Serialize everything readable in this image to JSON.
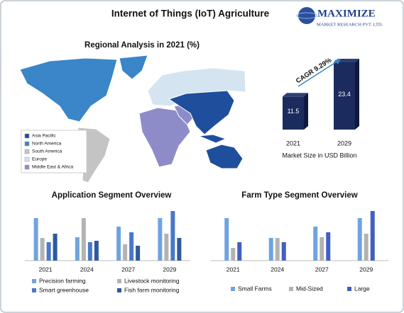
{
  "header": {
    "title": "Internet of Things (IoT) Agriculture",
    "logo_name": "MAXIMIZE",
    "logo_tagline": "MARKET RESEARCH PVT. LTD."
  },
  "regional": {
    "title": "Regional Analysis in 2021 (%)",
    "regions": [
      {
        "name": "Asia Pacific",
        "color": "#1f4e9c"
      },
      {
        "name": "North America",
        "color": "#3a86c8"
      },
      {
        "name": "South America",
        "color": "#c4c4c4"
      },
      {
        "name": "Europe",
        "color": "#d4e4f0"
      },
      {
        "name": "Middle East & Africa",
        "color": "#8e8cc8"
      }
    ]
  },
  "chart_data": [
    {
      "type": "bar",
      "categories": [
        "2021",
        "2029"
      ],
      "values": [
        11.5,
        23.4
      ],
      "color": "#1b2b5e",
      "annotation": "CAGR 9.29%",
      "x_label": "Market Size in USD Billion"
    },
    {
      "type": "grouped-bar",
      "title": "Application Segment Overview",
      "categories": [
        "2021",
        "2024",
        "2027",
        "2029"
      ],
      "series": [
        {
          "name": "Precision farming",
          "color": "#6fa3e0",
          "values": [
            60,
            33,
            48,
            60
          ]
        },
        {
          "name": "Livestock monitoring",
          "color": "#b3b3b3",
          "values": [
            32,
            60,
            23,
            38
          ]
        },
        {
          "name": "Smart greenhouse",
          "color": "#4a78c8",
          "values": [
            26,
            26,
            40,
            70
          ]
        },
        {
          "name": "Fish farm monitoring",
          "color": "#2d5a9a",
          "values": [
            38,
            28,
            21,
            32
          ]
        }
      ]
    },
    {
      "type": "grouped-bar",
      "title": "Farm Type Segment Overview",
      "categories": [
        "2021",
        "2024",
        "2027",
        "2029"
      ],
      "series": [
        {
          "name": "Small Farms",
          "color": "#6fa3e0",
          "values": [
            60,
            32,
            48,
            60
          ]
        },
        {
          "name": "Mid-Sized",
          "color": "#b3b3b3",
          "values": [
            18,
            32,
            33,
            38
          ]
        },
        {
          "name": "Large",
          "color": "#4060c0",
          "values": [
            26,
            26,
            40,
            70
          ]
        }
      ]
    }
  ]
}
